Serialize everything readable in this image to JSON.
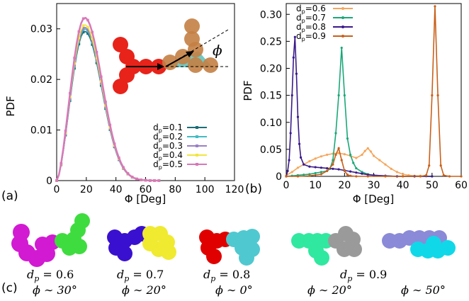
{
  "panel_labels": {
    "a": "(a)",
    "b": "(b)",
    "c": "(c)"
  },
  "chart_data": [
    {
      "type": "line",
      "panel": "(a)",
      "xlabel": "Φ [Deg]",
      "ylabel": "PDF",
      "xlim": [
        0,
        120
      ],
      "ylim": [
        0,
        0.035
      ],
      "xticks": [
        "0",
        "20",
        "40",
        "60",
        "80",
        "100",
        "120"
      ],
      "yticks": [
        "0",
        "0.01",
        "0.02",
        "0.03"
      ],
      "legend_position": "bottom-right",
      "series": [
        {
          "name": "dp=0.1",
          "label_main": "d",
          "label_sub": "p",
          "label_rest": "=0.1",
          "color": "#1a6f78",
          "peak": 0.0295
        },
        {
          "name": "dp=0.2",
          "label_main": "d",
          "label_sub": "p",
          "label_rest": "=0.2",
          "color": "#41bcc4",
          "peak": 0.03
        },
        {
          "name": "dp=0.3",
          "label_main": "d",
          "label_sub": "p",
          "label_rest": "=0.3",
          "color": "#9a80c6",
          "peak": 0.0303
        },
        {
          "name": "dp=0.4",
          "label_main": "d",
          "label_sub": "p",
          "label_rest": "=0.4",
          "color": "#f2e640",
          "peak": 0.0308
        },
        {
          "name": "dp=0.5",
          "label_main": "d",
          "label_sub": "p",
          "label_rest": "=0.5",
          "color": "#d878b8",
          "peak": 0.0322
        }
      ],
      "inset": {
        "phi_symbol": "ϕ"
      }
    },
    {
      "type": "line",
      "panel": "(b)",
      "xlabel": "Φ [Deg]",
      "ylabel": "PDF",
      "xlim": [
        0,
        60
      ],
      "ylim": [
        0,
        0.32
      ],
      "xticks": [
        "0",
        "10",
        "20",
        "30",
        "40",
        "50",
        "60"
      ],
      "yticks": [
        "0",
        "0.05",
        "0.10",
        "0.15",
        "0.20",
        "0.25",
        "0.30"
      ],
      "legend_position": "top-left",
      "series": [
        {
          "name": "dp=0.6",
          "label_main": "d",
          "label_sub": "p",
          "label_rest": "=0.6",
          "color": "#f5a65b",
          "x": [
            0,
            2,
            4,
            6,
            8,
            10,
            12,
            14,
            16,
            18,
            20,
            22,
            24,
            26,
            27,
            28,
            29,
            30,
            32,
            34,
            36,
            38,
            40,
            42,
            44,
            46,
            48,
            50
          ],
          "y": [
            0.002,
            0.008,
            0.016,
            0.022,
            0.028,
            0.033,
            0.037,
            0.04,
            0.042,
            0.043,
            0.041,
            0.038,
            0.034,
            0.04,
            0.047,
            0.052,
            0.046,
            0.038,
            0.03,
            0.022,
            0.014,
            0.008,
            0.004,
            0.002,
            0.001,
            0.001,
            0.0,
            0.0
          ]
        },
        {
          "name": "dp=0.7",
          "label_main": "d",
          "label_sub": "p",
          "label_rest": "=0.7",
          "color": "#1aa878",
          "x": [
            0,
            2,
            4,
            6,
            8,
            10,
            12,
            14,
            15,
            16,
            17,
            18,
            19,
            20,
            21,
            22,
            23,
            24,
            26,
            28,
            30,
            34,
            38,
            44,
            50
          ],
          "y": [
            0.0,
            0.001,
            0.002,
            0.003,
            0.004,
            0.006,
            0.008,
            0.01,
            0.014,
            0.03,
            0.08,
            0.15,
            0.238,
            0.15,
            0.07,
            0.04,
            0.025,
            0.015,
            0.008,
            0.004,
            0.002,
            0.001,
            0.0,
            0.0,
            0.0
          ]
        },
        {
          "name": "dp=0.8",
          "label_main": "d",
          "label_sub": "p",
          "label_rest": "=0.8",
          "color": "#3a1a8a",
          "x": [
            0,
            0.5,
            1,
            1.5,
            2,
            2.5,
            3,
            3.5,
            4,
            4.5,
            5,
            6,
            8,
            10,
            12,
            14,
            16,
            18,
            20,
            22,
            24,
            26,
            28,
            30,
            34,
            38,
            44,
            50
          ],
          "y": [
            0.0,
            0.01,
            0.03,
            0.08,
            0.15,
            0.22,
            0.258,
            0.19,
            0.11,
            0.06,
            0.035,
            0.022,
            0.018,
            0.017,
            0.016,
            0.015,
            0.014,
            0.013,
            0.011,
            0.009,
            0.007,
            0.005,
            0.003,
            0.002,
            0.001,
            0.0,
            0.0,
            0.0
          ]
        },
        {
          "name": "dp=0.9",
          "label_main": "d",
          "label_sub": "p",
          "label_rest": "=0.9",
          "color": "#c8601a",
          "x": [
            0,
            4,
            8,
            12,
            14,
            16,
            17,
            18,
            19,
            20,
            21,
            22,
            24,
            28,
            34,
            40,
            46,
            48,
            49,
            50,
            51,
            52,
            53,
            54,
            56,
            60
          ],
          "y": [
            0.0,
            0.0,
            0.001,
            0.004,
            0.01,
            0.022,
            0.04,
            0.052,
            0.03,
            0.01,
            0.003,
            0.001,
            0.0,
            0.0,
            0.0,
            0.0,
            0.0,
            0.002,
            0.02,
            0.15,
            0.315,
            0.15,
            0.02,
            0.002,
            0.0,
            0.0
          ]
        }
      ]
    }
  ],
  "gallery": [
    {
      "dp": "d",
      "dp_sub": "p",
      "dp_val": " = 0.6",
      "phi": "ϕ ∼ 30°",
      "colors": [
        "#d21ad2",
        "#40e040"
      ]
    },
    {
      "dp": "d",
      "dp_sub": "p",
      "dp_val": " = 0.7",
      "phi": "ϕ ∼ 20°",
      "colors": [
        "#3a10d0",
        "#f0ea30"
      ]
    },
    {
      "dp": "d",
      "dp_sub": "p",
      "dp_val": " = 0.8",
      "phi": "ϕ ∼ 0°",
      "colors": [
        "#e00000",
        "#50c8d0"
      ]
    },
    {
      "dp": "d",
      "dp_sub": "p",
      "dp_val": " = 0.9",
      "phi_left": "ϕ ∼ 20°",
      "phi_right": "ϕ ∼ 50°",
      "colors_left": [
        "#30e8a0",
        "#9a9a9a"
      ],
      "colors_right": [
        "#8a8ad8",
        "#10d8e8"
      ]
    }
  ]
}
